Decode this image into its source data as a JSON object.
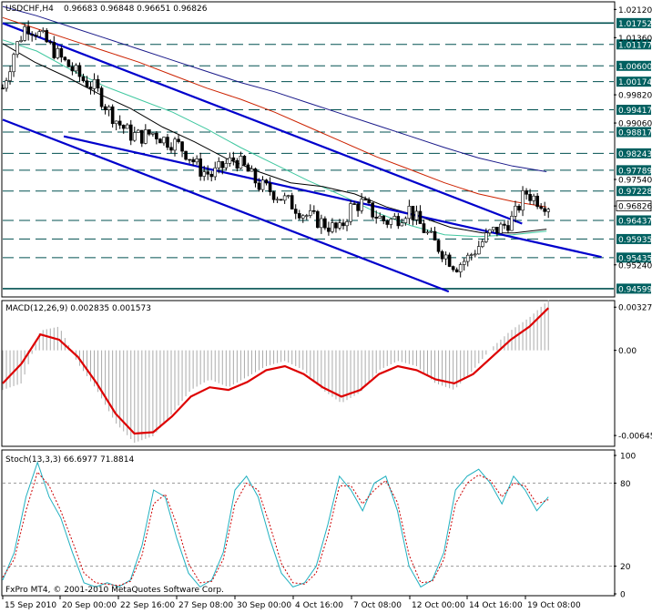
{
  "chart_data": [
    {
      "type": "candlestick",
      "symbol_header": "USDCHF,H4",
      "ohlc_readout": "0.96683 0.96848 0.96651 0.96826",
      "ylim": [
        0.944,
        1.023
      ],
      "price_ticks": [
        "1.02120",
        "1.01360",
        "0.99820",
        "0.99060",
        "0.97540",
        "0.96826",
        "0.95240"
      ],
      "level_lines": [
        {
          "label": "1.01752",
          "value": 1.01752
        },
        {
          "label": "1.01177",
          "value": 1.01177
        },
        {
          "label": "1.00600",
          "value": 1.006
        },
        {
          "label": "1.00174",
          "value": 1.00174
        },
        {
          "label": "0.99417",
          "value": 0.99417
        },
        {
          "label": "0.98817",
          "value": 0.98817
        },
        {
          "label": "0.98243",
          "value": 0.98243
        },
        {
          "label": "0.97789",
          "value": 0.97789
        },
        {
          "label": "0.97228",
          "value": 0.97228
        },
        {
          "label": "0.96437",
          "value": 0.96437
        },
        {
          "label": "0.95935",
          "value": 0.95935
        },
        {
          "label": "0.95435",
          "value": 0.95435
        },
        {
          "label": "0.94599",
          "value": 0.94599
        }
      ],
      "current_price": {
        "label": "0.96826",
        "value": 0.96826
      },
      "price_path": [
        1.0,
        1.01,
        1.017,
        1.015,
        1.0115,
        1.008,
        1.005,
        1.002,
        1.0,
        0.9945,
        0.9905,
        0.9875,
        0.987,
        0.988,
        0.986,
        0.985,
        0.982,
        0.978,
        0.9765,
        0.979,
        0.981,
        0.978,
        0.974,
        0.9725,
        0.9705,
        0.9685,
        0.966,
        0.9645,
        0.963,
        0.9615,
        0.968,
        0.969,
        0.966,
        0.964,
        0.965,
        0.9675,
        0.963,
        0.959,
        0.9555,
        0.952,
        0.954,
        0.9575,
        0.961,
        0.9625,
        0.965,
        0.972,
        0.97,
        0.9685
      ],
      "trend_lines": [
        {
          "name": "upper",
          "from": [
            0.0,
            1.0175
          ],
          "to": [
            0.85,
            0.9635
          ],
          "color": "#0000cc"
        },
        {
          "name": "mid",
          "from": [
            0.1,
            0.987
          ],
          "to": [
            0.98,
            0.9545
          ],
          "color": "#0000cc"
        },
        {
          "name": "lower",
          "from": [
            0.0,
            0.9915
          ],
          "to": [
            0.73,
            0.9452
          ],
          "color": "#0000cc"
        }
      ],
      "moving_averages": [
        {
          "name": "ma-navy",
          "color": "#1a1a8a",
          "path": [
            1.022,
            1.0195,
            1.0165,
            1.0135,
            1.0105,
            1.0075,
            1.0045,
            1.0015,
            0.999,
            0.996,
            0.993,
            0.99,
            0.987,
            0.984,
            0.9812,
            0.979,
            0.9775
          ]
        },
        {
          "name": "ma-red",
          "color": "#cc2200",
          "path": [
            1.019,
            1.016,
            1.013,
            1.01,
            1.007,
            1.0035,
            1.0,
            0.997,
            0.9935,
            0.9895,
            0.9855,
            0.9815,
            0.978,
            0.9745,
            0.9715,
            0.9695,
            0.968
          ]
        },
        {
          "name": "ma-teal",
          "color": "#40c8a0",
          "path": [
            1.013,
            1.01,
            1.005,
            1.0005,
            0.997,
            0.9935,
            0.989,
            0.984,
            0.9795,
            0.975,
            0.971,
            0.9665,
            0.963,
            0.9605,
            0.96,
            0.9605,
            0.9615
          ]
        },
        {
          "name": "ma-black",
          "color": "#000000",
          "path": [
            1.012,
            1.007,
            1.003,
            0.9985,
            0.9945,
            0.9895,
            0.9855,
            0.981,
            0.9775,
            0.9745,
            0.9735,
            0.9715,
            0.968,
            0.9655,
            0.9625,
            0.961,
            0.961,
            0.962
          ]
        }
      ]
    },
    {
      "type": "histogram-line",
      "title": "MACD(12,26,9) 0.002835 0.001573",
      "ylim": [
        -0.0072,
        0.0037
      ],
      "ticks": [
        "0.00327",
        "0.00",
        "-0.00645"
      ],
      "signal_color": "#dd0000",
      "histogram_color": "#aaaaaa",
      "signal": [
        -0.0025,
        -0.001,
        0.0012,
        0.0008,
        -0.0005,
        -0.0025,
        -0.0048,
        -0.0063,
        -0.0062,
        -0.005,
        -0.0035,
        -0.0028,
        -0.003,
        -0.0024,
        -0.0015,
        -0.0012,
        -0.0018,
        -0.0028,
        -0.0035,
        -0.003,
        -0.0018,
        -0.0012,
        -0.0015,
        -0.0022,
        -0.0025,
        -0.0018,
        -0.0005,
        0.0008,
        0.0018,
        0.0032
      ],
      "histogram": [
        -0.003,
        -0.0025,
        0.0015,
        0.0018,
        -0.001,
        -0.003,
        -0.0055,
        -0.007,
        -0.0065,
        -0.0048,
        -0.003,
        -0.0022,
        -0.0028,
        -0.002,
        -0.0012,
        -0.0008,
        -0.0015,
        -0.003,
        -0.004,
        -0.0032,
        -0.0015,
        -0.0008,
        -0.0012,
        -0.0025,
        -0.003,
        -0.0015,
        0.0002,
        0.0015,
        0.0025,
        0.0038
      ]
    },
    {
      "type": "line",
      "title": "Stoch(13,3,3) 66.6977 71.8814",
      "ylim": [
        0,
        100
      ],
      "ticks": [
        "100",
        "80",
        "20",
        "0"
      ],
      "main_color": "#20b0c0",
      "signal_color": "#cc0000",
      "main": [
        10,
        30,
        70,
        95,
        70,
        55,
        30,
        8,
        5,
        8,
        5,
        10,
        35,
        75,
        70,
        40,
        15,
        5,
        10,
        30,
        75,
        85,
        70,
        40,
        15,
        5,
        8,
        20,
        50,
        85,
        75,
        60,
        80,
        85,
        60,
        20,
        5,
        10,
        30,
        75,
        85,
        90,
        80,
        65,
        85,
        75,
        60,
        70
      ],
      "signal": [
        12,
        25,
        60,
        88,
        78,
        60,
        38,
        15,
        8,
        7,
        6,
        9,
        28,
        65,
        72,
        50,
        22,
        8,
        9,
        25,
        65,
        80,
        75,
        50,
        22,
        8,
        7,
        15,
        42,
        78,
        78,
        65,
        75,
        82,
        66,
        28,
        8,
        9,
        25,
        65,
        80,
        86,
        82,
        70,
        80,
        78,
        65,
        68
      ]
    }
  ],
  "x_axis_labels": [
    "15 Sep 2010",
    "20 Sep 00:00",
    "22 Sep 16:00",
    "27 Sep 08:00",
    "30 Sep 00:00",
    "4 Oct 16:00",
    "7 Oct 08:00",
    "12 Oct 00:00",
    "14 Oct 16:00",
    "19 Oct 08:00"
  ],
  "footer": "FxPro MT4, © 2001-2010 MetaQuotes Software Corp.",
  "colors": {
    "level_box": "#006060",
    "level_line": "#005050",
    "candle": "#000000"
  }
}
